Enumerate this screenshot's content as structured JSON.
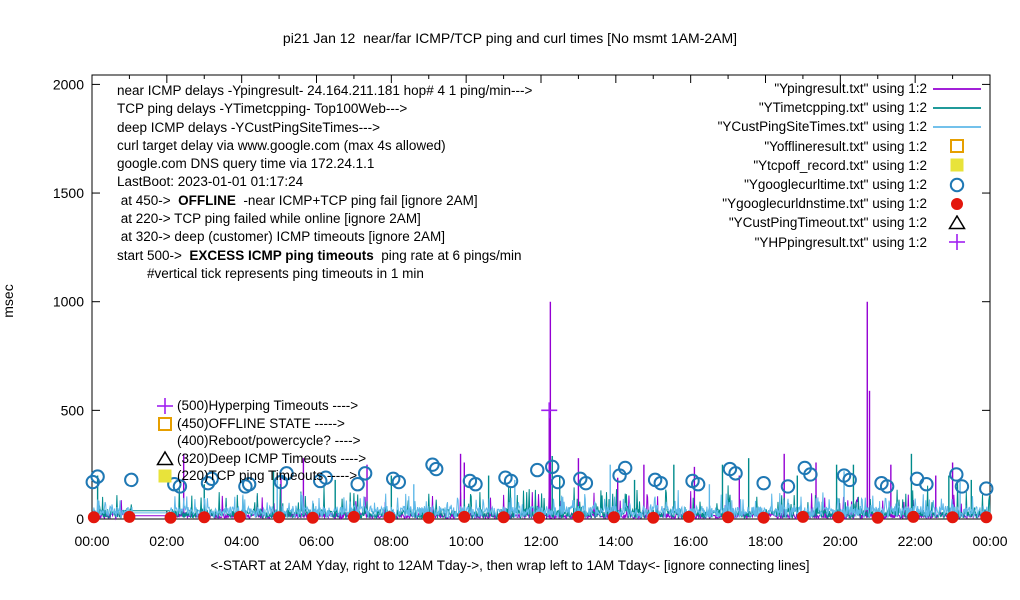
{
  "chart_data": {
    "type": "line",
    "title": "pi21 Jan 12  near/far ICMP/TCP ping and curl times [No msmt 1AM-2AM]",
    "ylabel": "msec",
    "xlabel": "<-START at 2AM Yday, right to 12AM Tday->, then wrap left to 1AM Tday<- [ignore connecting lines]",
    "ylim": [
      0,
      2000
    ],
    "xlim_hours": [
      0,
      24
    ],
    "grid": false,
    "legend_position": "top-right-inside",
    "y_ticks": [
      "0",
      "500",
      "1000",
      "1500",
      "2000"
    ],
    "x_ticks": [
      "00:00",
      "02:00",
      "04:00",
      "06:00",
      "08:00",
      "10:00",
      "12:00",
      "14:00",
      "16:00",
      "18:00",
      "20:00",
      "22:00",
      "00:00"
    ],
    "x_minor_every_hours": 1,
    "gap": {
      "start_hour": 1.083,
      "end_hour": 2.083,
      "reason": "No msmt 1AM-2AM"
    },
    "series": [
      {
        "name": "\"Ypingresult.txt\" using 1:2",
        "color": "#9400d3",
        "kind": "line",
        "noise": {
          "seed": 7,
          "base": [
            2,
            28
          ],
          "spike_prob": 0.05,
          "spike_extra": 110
        },
        "gap_value": 15,
        "major_spikes": [
          [
            2.45,
            300
          ],
          [
            5.05,
            200
          ],
          [
            5.65,
            280
          ],
          [
            7.35,
            250
          ],
          [
            9.85,
            300
          ],
          [
            9.95,
            260
          ],
          [
            12.22,
            520
          ],
          [
            12.25,
            1000
          ],
          [
            13.0,
            280
          ],
          [
            14.05,
            190
          ],
          [
            14.75,
            250
          ],
          [
            16.1,
            240
          ],
          [
            17.3,
            200
          ],
          [
            18.5,
            300
          ],
          [
            19.35,
            260
          ],
          [
            20.72,
            1000
          ],
          [
            20.78,
            590
          ],
          [
            21.35,
            250
          ],
          [
            22.55,
            200
          ],
          [
            23.0,
            260
          ]
        ]
      },
      {
        "name": "\"YTimetcpping.txt\" using 1:2",
        "color": "#008b8b",
        "kind": "line",
        "noise": {
          "seed": 13,
          "base": [
            4,
            45
          ],
          "spike_prob": 0.09,
          "spike_extra": 130
        },
        "gap_value": 38,
        "major_spikes": [
          [
            0.15,
            200
          ],
          [
            3.0,
            160
          ],
          [
            4.85,
            220
          ],
          [
            6.5,
            180
          ],
          [
            8.0,
            200
          ],
          [
            10.6,
            200
          ],
          [
            12.3,
            290
          ],
          [
            12.5,
            200
          ],
          [
            14.5,
            180
          ],
          [
            15.55,
            250
          ],
          [
            16.85,
            250
          ],
          [
            17.55,
            280
          ],
          [
            18.85,
            200
          ],
          [
            19.9,
            250
          ],
          [
            20.35,
            250
          ],
          [
            21.9,
            300
          ],
          [
            22.9,
            200
          ],
          [
            23.5,
            180
          ]
        ]
      },
      {
        "name": "\"YCustPingSiteTimes.txt\" using 1:2",
        "color": "#5fb8e8",
        "kind": "line",
        "noise": {
          "seed": 21,
          "base": [
            6,
            60
          ],
          "spike_prob": 0.14,
          "spike_extra": 80
        },
        "gap_value": 28,
        "major_spikes": [
          [
            4.95,
            200
          ],
          [
            8.6,
            160
          ],
          [
            11.3,
            180
          ],
          [
            13.85,
            250
          ],
          [
            16.5,
            160
          ],
          [
            20.1,
            220
          ],
          [
            23.2,
            170
          ]
        ]
      },
      {
        "name": "\"Yofflineresult.txt\" using 1:2",
        "color": "#e69f00",
        "kind": "square-open",
        "points": []
      },
      {
        "name": "\"Ytcpoff_record.txt\" using 1:2",
        "color": "#e8e33a",
        "kind": "square-filled",
        "points": []
      },
      {
        "name": "\"Ygooglecurltime.txt\" using 1:2",
        "color": "#1f78b4",
        "kind": "circle-open",
        "points": [
          [
            0.02,
            170
          ],
          [
            0.15,
            195
          ],
          [
            1.05,
            180
          ],
          [
            2.2,
            160
          ],
          [
            2.35,
            150
          ],
          [
            3.1,
            165
          ],
          [
            3.2,
            185
          ],
          [
            4.1,
            150
          ],
          [
            4.2,
            160
          ],
          [
            5.05,
            170
          ],
          [
            5.2,
            210
          ],
          [
            6.1,
            175
          ],
          [
            6.25,
            190
          ],
          [
            7.1,
            160
          ],
          [
            7.3,
            210
          ],
          [
            8.05,
            185
          ],
          [
            8.2,
            170
          ],
          [
            9.1,
            250
          ],
          [
            9.2,
            230
          ],
          [
            10.1,
            175
          ],
          [
            10.25,
            160
          ],
          [
            11.05,
            190
          ],
          [
            11.2,
            175
          ],
          [
            11.9,
            225
          ],
          [
            12.3,
            240
          ],
          [
            12.45,
            170
          ],
          [
            13.05,
            185
          ],
          [
            13.2,
            165
          ],
          [
            14.1,
            200
          ],
          [
            14.25,
            235
          ],
          [
            15.05,
            180
          ],
          [
            15.2,
            165
          ],
          [
            16.05,
            175
          ],
          [
            16.2,
            160
          ],
          [
            17.05,
            230
          ],
          [
            17.2,
            210
          ],
          [
            17.95,
            165
          ],
          [
            18.6,
            150
          ],
          [
            19.05,
            235
          ],
          [
            19.2,
            205
          ],
          [
            20.1,
            200
          ],
          [
            20.25,
            180
          ],
          [
            21.1,
            165
          ],
          [
            21.25,
            150
          ],
          [
            22.05,
            185
          ],
          [
            22.3,
            160
          ],
          [
            23.1,
            205
          ],
          [
            23.25,
            150
          ],
          [
            23.9,
            140
          ]
        ]
      },
      {
        "name": "\"Ygooglecurldnstime.txt\" using 1:2",
        "color": "#e3170d",
        "kind": "circle-filled",
        "points": [
          [
            0.05,
            8
          ],
          [
            1.0,
            10
          ],
          [
            2.1,
            6
          ],
          [
            3.0,
            8
          ],
          [
            3.95,
            10
          ],
          [
            5.0,
            8
          ],
          [
            5.9,
            6
          ],
          [
            7.0,
            10
          ],
          [
            7.95,
            8
          ],
          [
            9.0,
            6
          ],
          [
            9.95,
            10
          ],
          [
            11.0,
            8
          ],
          [
            11.95,
            6
          ],
          [
            13.0,
            10
          ],
          [
            13.95,
            8
          ],
          [
            15.0,
            6
          ],
          [
            15.95,
            10
          ],
          [
            17.0,
            8
          ],
          [
            17.95,
            6
          ],
          [
            19.0,
            10
          ],
          [
            19.95,
            8
          ],
          [
            21.0,
            6
          ],
          [
            21.95,
            10
          ],
          [
            23.0,
            8
          ],
          [
            23.9,
            8
          ]
        ]
      },
      {
        "name": "\"YCustPingTimeout.txt\" using 1:2",
        "color": "#000000",
        "kind": "triangle-open",
        "points": []
      },
      {
        "name": "\"YHPpingresult.txt\" using 1:2",
        "color": "#a020f0",
        "kind": "plus",
        "points": [
          [
            12.22,
            500
          ]
        ]
      }
    ],
    "notes": [
      [
        {
          "t": "near ICMP delays -Ypingresult- 24.164.211.181 hop# 4 1 ping/min--->",
          "b": false
        }
      ],
      [
        {
          "t": "TCP ping delays -YTimetcpping- Top100Web--->",
          "b": false
        }
      ],
      [
        {
          "t": "deep ICMP delays -YCustPingSiteTimes--->",
          "b": false
        }
      ],
      [
        {
          "t": "curl target delay via www.google.com (max 4s allowed)",
          "b": false
        }
      ],
      [
        {
          "t": "google.com DNS query time via 172.24.1.1",
          "b": false
        }
      ],
      [
        {
          "t": "LastBoot: 2023-01-01 01:17:24",
          "b": false
        }
      ],
      [
        {
          "t": " at 450->  ",
          "b": false
        },
        {
          "t": "OFFLINE",
          "b": true
        },
        {
          "t": "  -near ICMP+TCP ping fail [ignore 2AM]",
          "b": false
        }
      ],
      [
        {
          "t": " at 220-> TCP ping failed while online [ignore 2AM]",
          "b": false
        }
      ],
      [
        {
          "t": " at 320-> deep (customer) ICMP timeouts [ignore 2AM]",
          "b": false
        }
      ],
      [
        {
          "t": "start 500->  ",
          "b": false
        },
        {
          "t": "EXCESS ICMP ping timeouts",
          "b": true
        },
        {
          "t": "  ping rate at 6 pings/min",
          "b": false
        }
      ],
      [
        {
          "t": "        #vertical tick represents ping timeouts in 1 min",
          "b": false
        }
      ]
    ],
    "inplot_legend": [
      {
        "marker": "plus",
        "color": "#a020f0",
        "label": "(500)Hyperping Timeouts ---->"
      },
      {
        "marker": "square-open",
        "color": "#e69f00",
        "label": "(450)OFFLINE STATE ----->"
      },
      {
        "marker": "none",
        "color": "",
        "label": "(400)Reboot/powercycle? ---->"
      },
      {
        "marker": "triangle-open",
        "color": "#000000",
        "label": "(320)Deep ICMP Timeouts ---->"
      },
      {
        "marker": "square-filled",
        "color": "#e8e33a",
        "label": "(220)TCP ping Timeouts ----->"
      }
    ]
  }
}
